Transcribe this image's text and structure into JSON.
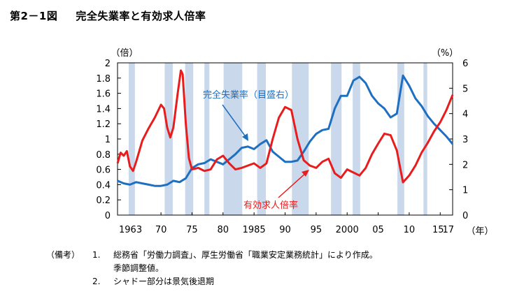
{
  "figure": {
    "number": "第2－1図",
    "title": "完全失業率と有効求人倍率"
  },
  "notes": {
    "label": "（備考）",
    "items": [
      {
        "num": "1.",
        "lines": [
          "総務省「労働力調査」、厚生労働省「職業安定業務統計」により作成。",
          "季節調整値。"
        ]
      },
      {
        "num": "2.",
        "lines": [
          "シャドー部分は景気後退期"
        ]
      }
    ]
  },
  "colors": {
    "unemployment": "#1f6fc1",
    "job_ratio": "#e81c1c",
    "shade": "#c9d8ea"
  },
  "chart_data": {
    "type": "line",
    "y_left": {
      "unit": "（倍）",
      "lim": [
        0,
        2
      ],
      "ticks": [
        "0",
        "0.2",
        "0.4",
        "0.6",
        "0.8",
        "1",
        "1.2",
        "1.4",
        "1.6",
        "1.8",
        "2"
      ]
    },
    "y_right": {
      "unit": "（%）",
      "lim": [
        0,
        6
      ],
      "ticks": [
        "0",
        "1",
        "2",
        "3",
        "4",
        "5",
        "6"
      ]
    },
    "x": {
      "unit": "（年）",
      "lim": [
        1963,
        2017
      ],
      "tick_labels": [
        {
          "year": 1963,
          "label": "1963"
        },
        {
          "year": 1970,
          "label": "70"
        },
        {
          "year": 1975,
          "label": "75"
        },
        {
          "year": 1980,
          "label": "80"
        },
        {
          "year": 1985,
          "label": "1985"
        },
        {
          "year": 1990,
          "label": "90"
        },
        {
          "year": 1995,
          "label": "95"
        },
        {
          "year": 2000,
          "label": "2000"
        },
        {
          "year": 2005,
          "label": "05"
        },
        {
          "year": 2010,
          "label": "10"
        },
        {
          "year": 2015,
          "label": "15"
        },
        {
          "year": 2017,
          "label": "17"
        }
      ]
    },
    "recessions": [
      [
        1964.8,
        1965.8
      ],
      [
        1970.6,
        1971.9
      ],
      [
        1973.9,
        1975.2
      ],
      [
        1977.0,
        1977.8
      ],
      [
        1980.1,
        1983.1
      ],
      [
        1985.5,
        1986.9
      ],
      [
        1991.1,
        1993.8
      ],
      [
        1997.4,
        1999.1
      ],
      [
        2000.9,
        2002.1
      ],
      [
        2008.1,
        2009.2
      ],
      [
        2012.3,
        2012.9
      ]
    ],
    "series": [
      {
        "name": "完全失業率（目盛右）",
        "axis": "right",
        "points": [
          [
            1963.0,
            1.35
          ],
          [
            1964.0,
            1.25
          ],
          [
            1965.0,
            1.2
          ],
          [
            1966.0,
            1.3
          ],
          [
            1967.0,
            1.25
          ],
          [
            1968.0,
            1.2
          ],
          [
            1969.0,
            1.15
          ],
          [
            1970.0,
            1.15
          ],
          [
            1971.0,
            1.2
          ],
          [
            1972.0,
            1.35
          ],
          [
            1973.0,
            1.3
          ],
          [
            1974.0,
            1.45
          ],
          [
            1975.0,
            1.85
          ],
          [
            1976.0,
            2.0
          ],
          [
            1977.0,
            2.05
          ],
          [
            1978.0,
            2.2
          ],
          [
            1979.0,
            2.1
          ],
          [
            1980.0,
            2.0
          ],
          [
            1981.0,
            2.2
          ],
          [
            1982.0,
            2.4
          ],
          [
            1983.0,
            2.65
          ],
          [
            1984.0,
            2.7
          ],
          [
            1985.0,
            2.6
          ],
          [
            1986.0,
            2.8
          ],
          [
            1987.0,
            2.95
          ],
          [
            1988.0,
            2.5
          ],
          [
            1989.0,
            2.3
          ],
          [
            1990.0,
            2.1
          ],
          [
            1991.0,
            2.1
          ],
          [
            1992.0,
            2.15
          ],
          [
            1993.0,
            2.5
          ],
          [
            1994.0,
            2.9
          ],
          [
            1995.0,
            3.2
          ],
          [
            1996.0,
            3.35
          ],
          [
            1997.0,
            3.4
          ],
          [
            1998.0,
            4.2
          ],
          [
            1999.0,
            4.7
          ],
          [
            2000.0,
            4.7
          ],
          [
            2001.0,
            5.3
          ],
          [
            2002.0,
            5.45
          ],
          [
            2003.0,
            5.2
          ],
          [
            2004.0,
            4.7
          ],
          [
            2005.0,
            4.4
          ],
          [
            2006.0,
            4.2
          ],
          [
            2007.0,
            3.85
          ],
          [
            2008.0,
            4.0
          ],
          [
            2009.0,
            5.5
          ],
          [
            2010.0,
            5.1
          ],
          [
            2011.0,
            4.6
          ],
          [
            2012.0,
            4.3
          ],
          [
            2013.0,
            3.9
          ],
          [
            2014.0,
            3.6
          ],
          [
            2015.0,
            3.35
          ],
          [
            2016.0,
            3.1
          ],
          [
            2017.0,
            2.8
          ]
        ]
      },
      {
        "name": "有効求人倍率",
        "axis": "left",
        "points": [
          [
            1963.0,
            0.68
          ],
          [
            1963.5,
            0.82
          ],
          [
            1964.0,
            0.78
          ],
          [
            1964.5,
            0.84
          ],
          [
            1965.0,
            0.64
          ],
          [
            1965.5,
            0.58
          ],
          [
            1966.0,
            0.7
          ],
          [
            1967.0,
            0.98
          ],
          [
            1968.0,
            1.14
          ],
          [
            1969.0,
            1.28
          ],
          [
            1970.0,
            1.45
          ],
          [
            1970.5,
            1.4
          ],
          [
            1971.0,
            1.15
          ],
          [
            1971.5,
            1.02
          ],
          [
            1972.0,
            1.15
          ],
          [
            1972.7,
            1.6
          ],
          [
            1973.2,
            1.9
          ],
          [
            1973.5,
            1.85
          ],
          [
            1974.0,
            1.2
          ],
          [
            1974.5,
            0.75
          ],
          [
            1975.0,
            0.6
          ],
          [
            1976.0,
            0.62
          ],
          [
            1977.0,
            0.58
          ],
          [
            1978.0,
            0.6
          ],
          [
            1979.0,
            0.73
          ],
          [
            1980.0,
            0.78
          ],
          [
            1981.0,
            0.68
          ],
          [
            1982.0,
            0.6
          ],
          [
            1983.0,
            0.62
          ],
          [
            1984.0,
            0.65
          ],
          [
            1985.0,
            0.68
          ],
          [
            1986.0,
            0.62
          ],
          [
            1987.0,
            0.68
          ],
          [
            1988.0,
            1.0
          ],
          [
            1989.0,
            1.28
          ],
          [
            1990.0,
            1.42
          ],
          [
            1991.0,
            1.38
          ],
          [
            1992.0,
            1.0
          ],
          [
            1993.0,
            0.72
          ],
          [
            1994.0,
            0.65
          ],
          [
            1995.0,
            0.62
          ],
          [
            1996.0,
            0.7
          ],
          [
            1997.0,
            0.74
          ],
          [
            1998.0,
            0.55
          ],
          [
            1999.0,
            0.49
          ],
          [
            2000.0,
            0.6
          ],
          [
            2001.0,
            0.56
          ],
          [
            2002.0,
            0.52
          ],
          [
            2003.0,
            0.62
          ],
          [
            2004.0,
            0.8
          ],
          [
            2005.0,
            0.94
          ],
          [
            2006.0,
            1.07
          ],
          [
            2007.0,
            1.05
          ],
          [
            2008.0,
            0.85
          ],
          [
            2009.0,
            0.43
          ],
          [
            2010.0,
            0.52
          ],
          [
            2011.0,
            0.65
          ],
          [
            2012.0,
            0.82
          ],
          [
            2013.0,
            0.95
          ],
          [
            2014.0,
            1.1
          ],
          [
            2015.0,
            1.22
          ],
          [
            2016.0,
            1.38
          ],
          [
            2017.0,
            1.58
          ]
        ]
      }
    ]
  }
}
